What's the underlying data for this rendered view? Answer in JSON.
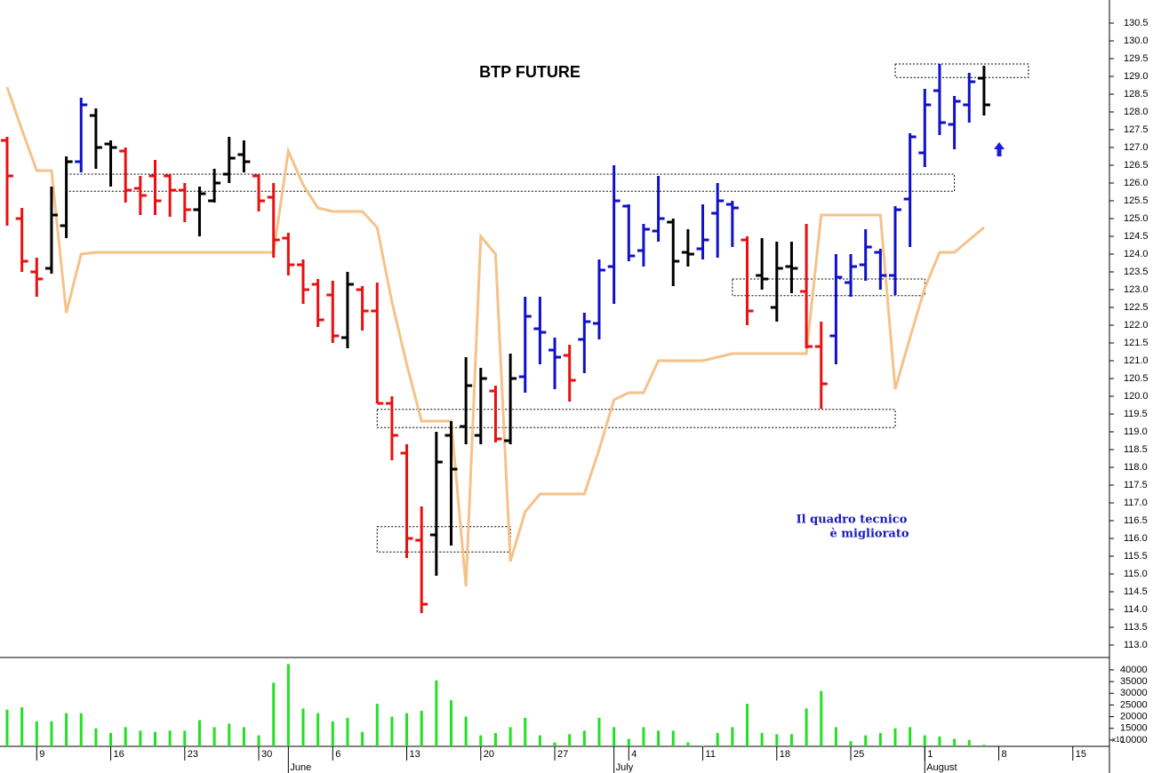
{
  "chart_data": {
    "type": "ohlc",
    "title": "BTP FUTURE",
    "annotation": [
      "Il quadro tecnico",
      "è migliorato"
    ],
    "categories": [
      null,
      null,
      "9",
      null,
      null,
      null,
      null,
      "16",
      null,
      null,
      null,
      null,
      "23",
      null,
      null,
      null,
      null,
      "30",
      null,
      null,
      null,
      null,
      "6",
      null,
      null,
      null,
      null,
      "13",
      null,
      null,
      null,
      null,
      "20",
      null,
      null,
      null,
      null,
      "27",
      null,
      null,
      null,
      null,
      "4",
      null,
      null,
      null,
      null,
      "11",
      null,
      null,
      null,
      null,
      "18",
      null,
      null,
      null,
      null,
      "25",
      null,
      null,
      null,
      null,
      "1",
      null,
      null,
      null,
      null,
      "8",
      null,
      null,
      null,
      null,
      "15",
      null,
      null
    ],
    "months": [
      null,
      null,
      null,
      null,
      null,
      null,
      null,
      null,
      null,
      null,
      null,
      null,
      null,
      null,
      null,
      null,
      null,
      null,
      null,
      "June",
      null,
      null,
      null,
      null,
      null,
      null,
      null,
      null,
      null,
      null,
      null,
      null,
      null,
      null,
      null,
      null,
      null,
      null,
      null,
      null,
      null,
      "July",
      null,
      null,
      null,
      null,
      null,
      null,
      null,
      null,
      null,
      null,
      null,
      null,
      null,
      null,
      null,
      null,
      null,
      null,
      null,
      null,
      "August",
      null,
      null,
      null,
      null,
      null,
      null,
      null,
      null,
      null,
      null,
      null,
      null
    ],
    "open": [
      127.2,
      125.0,
      123.5,
      123.6,
      124.8,
      126.6,
      127.9,
      127.1,
      126.9,
      125.85,
      126.2,
      126.2,
      125.8,
      125.25,
      125.5,
      126.25,
      126.8,
      126.2,
      125.6,
      124.45,
      123.7,
      123.15,
      122.85,
      121.65,
      123.0,
      122.4,
      119.8,
      118.4,
      115.95,
      116.1,
      118.9,
      119.15,
      118.9,
      120.15,
      118.75,
      120.55,
      121.9,
      121.3,
      121.15,
      121.6,
      122.05,
      123.65,
      125.35,
      124.1,
      124.65,
      124.9,
      124.05,
      124.15,
      125.15,
      125.4,
      124.4,
      123.4,
      122.5,
      123.65,
      122.95,
      121.4,
      121.7,
      123.2,
      123.7,
      124.05,
      123.4,
      125.55,
      126.85,
      128.6,
      127.65,
      128.2,
      128.95,
      null,
      null,
      null,
      null,
      null,
      null,
      null,
      null
    ],
    "high": [
      127.3,
      125.3,
      123.9,
      125.9,
      126.75,
      128.4,
      128.1,
      127.2,
      127.0,
      126.2,
      126.65,
      126.25,
      126.0,
      125.9,
      126.4,
      127.3,
      127.2,
      126.25,
      126.0,
      124.6,
      123.85,
      123.3,
      123.25,
      123.5,
      123.1,
      123.2,
      120.0,
      118.65,
      116.9,
      119.0,
      119.3,
      121.1,
      120.8,
      120.3,
      121.2,
      122.8,
      122.8,
      121.65,
      121.45,
      122.35,
      123.85,
      126.5,
      125.4,
      124.85,
      126.2,
      125.0,
      124.7,
      125.4,
      126.0,
      125.5,
      124.5,
      124.45,
      124.35,
      124.35,
      124.85,
      122.1,
      124.0,
      124.0,
      124.7,
      124.15,
      125.35,
      127.4,
      128.65,
      129.35,
      128.45,
      129.1,
      129.3,
      null,
      null,
      null,
      null,
      null,
      null,
      null,
      null
    ],
    "low": [
      124.8,
      123.5,
      122.8,
      123.45,
      124.45,
      126.3,
      126.4,
      125.9,
      125.45,
      125.1,
      125.1,
      125.05,
      124.9,
      124.5,
      125.45,
      126.0,
      126.3,
      125.2,
      123.9,
      123.4,
      122.6,
      121.95,
      121.5,
      121.35,
      121.85,
      119.8,
      118.2,
      115.45,
      113.9,
      114.95,
      115.8,
      118.65,
      118.65,
      118.7,
      118.65,
      120.1,
      120.9,
      120.2,
      119.85,
      120.65,
      121.6,
      122.6,
      123.8,
      123.65,
      124.35,
      123.1,
      123.65,
      123.85,
      123.9,
      124.2,
      122.0,
      123.0,
      122.1,
      122.9,
      121.35,
      119.65,
      120.9,
      122.8,
      123.25,
      123.0,
      122.85,
      124.2,
      126.45,
      127.35,
      126.95,
      127.7,
      127.9,
      null,
      null,
      null,
      null,
      null,
      null,
      null,
      null
    ],
    "close": [
      126.2,
      123.8,
      123.3,
      125.1,
      126.6,
      128.2,
      127.0,
      127.0,
      125.8,
      125.65,
      125.5,
      125.8,
      125.25,
      125.7,
      126.0,
      126.7,
      126.6,
      125.5,
      124.4,
      123.7,
      123.0,
      122.15,
      121.7,
      123.15,
      122.4,
      119.8,
      118.9,
      116.0,
      114.15,
      118.15,
      117.95,
      120.3,
      120.5,
      118.8,
      120.5,
      122.25,
      121.8,
      121.1,
      120.45,
      122.1,
      123.55,
      125.5,
      123.95,
      124.7,
      125.0,
      123.8,
      124.0,
      124.4,
      125.5,
      125.3,
      122.4,
      123.3,
      123.6,
      123.6,
      121.4,
      120.35,
      123.35,
      123.65,
      124.2,
      123.4,
      125.25,
      127.3,
      128.2,
      127.7,
      128.3,
      128.85,
      128.2,
      null,
      null,
      null,
      null,
      null,
      null,
      null,
      null
    ],
    "colors": [
      "#e81010",
      "#e81010",
      "#e81010",
      "#000000",
      "#000000",
      "#1010c8",
      "#000000",
      "#000000",
      "#e81010",
      "#e81010",
      "#e81010",
      "#e81010",
      "#e81010",
      "#000000",
      "#000000",
      "#000000",
      "#000000",
      "#e81010",
      "#e81010",
      "#e81010",
      "#e81010",
      "#e81010",
      "#e81010",
      "#000000",
      "#e81010",
      "#e81010",
      "#e81010",
      "#e81010",
      "#e81010",
      "#000000",
      "#000000",
      "#000000",
      "#000000",
      "#e81010",
      "#000000",
      "#1010c8",
      "#1010c8",
      "#1010c8",
      "#e81010",
      "#1010c8",
      "#1010c8",
      "#1010c8",
      "#1010c8",
      "#1010c8",
      "#1010c8",
      "#000000",
      "#000000",
      "#1010c8",
      "#1010c8",
      "#1010c8",
      "#e81010",
      "#000000",
      "#000000",
      "#000000",
      "#e81010",
      "#e81010",
      "#1010c8",
      "#1010c8",
      "#1010c8",
      "#1010c8",
      "#1010c8",
      "#1010c8",
      "#1010c8",
      "#1010c8",
      "#1010c8",
      "#1010c8",
      "#000000",
      null,
      null,
      null,
      null,
      null,
      null,
      null,
      null
    ],
    "line": {
      "color": "#f5c28a",
      "values": [
        128.7,
        127.5,
        126.35,
        126.35,
        122.35,
        124.0,
        124.05,
        124.05,
        124.05,
        124.05,
        124.05,
        124.05,
        124.05,
        124.05,
        124.05,
        124.05,
        124.05,
        124.05,
        124.05,
        126.9,
        125.95,
        125.3,
        125.2,
        125.2,
        125.2,
        124.75,
        122.65,
        120.9,
        119.3,
        119.3,
        119.3,
        114.65,
        124.5,
        124.0,
        115.35,
        116.75,
        117.25,
        117.25,
        117.25,
        117.25,
        118.5,
        119.9,
        120.1,
        120.1,
        121.0,
        121.0,
        121.0,
        121.0,
        121.1,
        121.2,
        121.2,
        121.2,
        121.2,
        121.2,
        121.2,
        125.1,
        125.1,
        125.1,
        125.1,
        125.1,
        120.2,
        121.65,
        123.05,
        124.05,
        124.05,
        124.4,
        124.75,
        null,
        null,
        null,
        null,
        null,
        null,
        null,
        null
      ]
    },
    "zones": [
      {
        "low": 125.77,
        "high": 126.25,
        "from": 4,
        "to": 64
      },
      {
        "low": 128.97,
        "high": 129.35,
        "from": 60,
        "to": 69
      },
      {
        "low": 122.83,
        "high": 123.3,
        "from": 49,
        "to": 62
      },
      {
        "low": 119.12,
        "high": 119.63,
        "from": 25,
        "to": 60
      },
      {
        "low": 115.62,
        "high": 116.33,
        "from": 25,
        "to": 34
      }
    ],
    "ylim": [
      112.65,
      131.15
    ],
    "yticks": [
      {
        "value": 113,
        "label": "113.0"
      },
      113.5,
      {
        "value": 114,
        "label": "114.0"
      },
      114.5,
      {
        "value": 115,
        "label": "115.0"
      },
      115.5,
      {
        "value": 116,
        "label": "116.0"
      },
      116.5,
      {
        "value": 117,
        "label": "117.0"
      },
      117.5,
      {
        "value": 118,
        "label": "118.0"
      },
      118.5,
      {
        "value": 119,
        "label": "119.0"
      },
      119.5,
      {
        "value": 120,
        "label": "120.0"
      },
      120.5,
      {
        "value": 121,
        "label": "121.0"
      },
      121.5,
      {
        "value": 122,
        "label": "122.0"
      },
      122.5,
      {
        "value": 123,
        "label": "123.0"
      },
      123.5,
      {
        "value": 124,
        "label": "124.0"
      },
      124.5,
      {
        "value": 125,
        "label": "125.0"
      },
      125.5,
      {
        "value": 126,
        "label": "126.0"
      },
      126.5,
      {
        "value": 127,
        "label": "127.0"
      },
      127.5,
      {
        "value": 128,
        "label": "128.0"
      },
      128.5,
      {
        "value": 129,
        "label": "129.0"
      },
      129.5,
      {
        "value": 130,
        "label": "130.0"
      },
      130.5
    ],
    "volume": {
      "color": "#22e022",
      "values": [
        23000,
        24000,
        18000,
        18000,
        21500,
        21500,
        15000,
        13000,
        15500,
        14000,
        13500,
        14000,
        14000,
        18500,
        15500,
        17000,
        15500,
        12000,
        34500,
        42500,
        23500,
        21500,
        18000,
        19500,
        13500,
        25500,
        20000,
        21500,
        22500,
        35500,
        27000,
        20000,
        12000,
        13000,
        15500,
        19500,
        12000,
        9000,
        12500,
        14000,
        19500,
        15500,
        10500,
        15500,
        14000,
        14000,
        9000,
        7500,
        13000,
        15500,
        25500,
        13000,
        12500,
        12500,
        23500,
        31000,
        15500,
        9500,
        12000,
        13000,
        15000,
        15500,
        12000,
        11500,
        10500,
        10000,
        8000,
        null,
        null,
        null,
        null,
        null,
        null,
        null,
        null
      ],
      "ylim": [
        7300,
        45300
      ],
      "yticks": [
        10000,
        15000,
        20000,
        25000,
        30000,
        35000,
        40000
      ],
      "multiplier_label": "x10"
    }
  }
}
